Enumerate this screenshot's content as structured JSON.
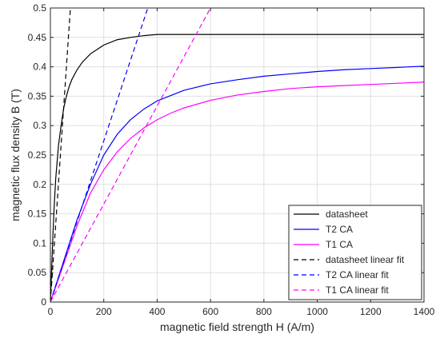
{
  "chart_data": {
    "type": "line",
    "title": "",
    "xlabel": "magnetic field strength H (A/m)",
    "ylabel": "magnetic flux density B (T)",
    "xlim": [
      0,
      1400
    ],
    "ylim": [
      0,
      0.5
    ],
    "xticks": [
      0,
      200,
      400,
      600,
      800,
      1000,
      1200,
      1400
    ],
    "yticks": [
      0,
      0.05,
      0.1,
      0.15,
      0.2,
      0.25,
      0.3,
      0.35,
      0.4,
      0.45,
      0.5
    ],
    "xtick_labels": [
      "0",
      "200",
      "400",
      "600",
      "800",
      "1000",
      "1200",
      "1400"
    ],
    "ytick_labels": [
      "0",
      "0.05",
      "0.1",
      "0.15",
      "0.2",
      "0.25",
      "0.3",
      "0.35",
      "0.4",
      "0.45",
      "0.5"
    ],
    "grid": true,
    "legend_position": "bottom-right",
    "series": [
      {
        "name": "datasheet",
        "color": "#000000",
        "dash": "solid",
        "x": [
          0,
          5,
          10,
          15,
          20,
          30,
          40,
          50,
          60,
          70,
          80,
          100,
          120,
          150,
          200,
          250,
          300,
          350,
          400,
          600,
          800,
          1000,
          1200,
          1400
        ],
        "y": [
          0,
          0.06,
          0.12,
          0.17,
          0.21,
          0.265,
          0.3,
          0.33,
          0.35,
          0.366,
          0.378,
          0.395,
          0.408,
          0.422,
          0.437,
          0.446,
          0.45,
          0.453,
          0.455,
          0.455,
          0.455,
          0.455,
          0.455,
          0.455
        ]
      },
      {
        "name": "T2 CA",
        "color": "#0000ff",
        "dash": "solid",
        "x": [
          0,
          50,
          100,
          150,
          200,
          250,
          300,
          350,
          400,
          500,
          600,
          700,
          800,
          900,
          1000,
          1100,
          1200,
          1300,
          1400
        ],
        "y": [
          0,
          0.07,
          0.14,
          0.2,
          0.25,
          0.285,
          0.31,
          0.328,
          0.342,
          0.36,
          0.371,
          0.378,
          0.384,
          0.388,
          0.392,
          0.395,
          0.397,
          0.399,
          0.401
        ]
      },
      {
        "name": "T1 CA",
        "color": "#ff00ff",
        "dash": "solid",
        "x": [
          0,
          50,
          100,
          150,
          200,
          250,
          300,
          350,
          400,
          450,
          500,
          600,
          700,
          800,
          900,
          1000,
          1100,
          1200,
          1300,
          1400
        ],
        "y": [
          0,
          0.065,
          0.13,
          0.185,
          0.225,
          0.255,
          0.278,
          0.296,
          0.31,
          0.321,
          0.33,
          0.343,
          0.352,
          0.358,
          0.363,
          0.366,
          0.368,
          0.37,
          0.372,
          0.374
        ]
      },
      {
        "name": "datasheet linear fit",
        "color": "#000000",
        "dash": "dashed",
        "x": [
          0,
          75
        ],
        "y": [
          0,
          0.5
        ]
      },
      {
        "name": "T2 CA linear fit",
        "color": "#0000ff",
        "dash": "dashed",
        "x": [
          0,
          365
        ],
        "y": [
          0,
          0.5
        ]
      },
      {
        "name": "T1 CA linear fit",
        "color": "#ff00ff",
        "dash": "dashed",
        "x": [
          0,
          600
        ],
        "y": [
          0,
          0.5
        ]
      }
    ]
  }
}
